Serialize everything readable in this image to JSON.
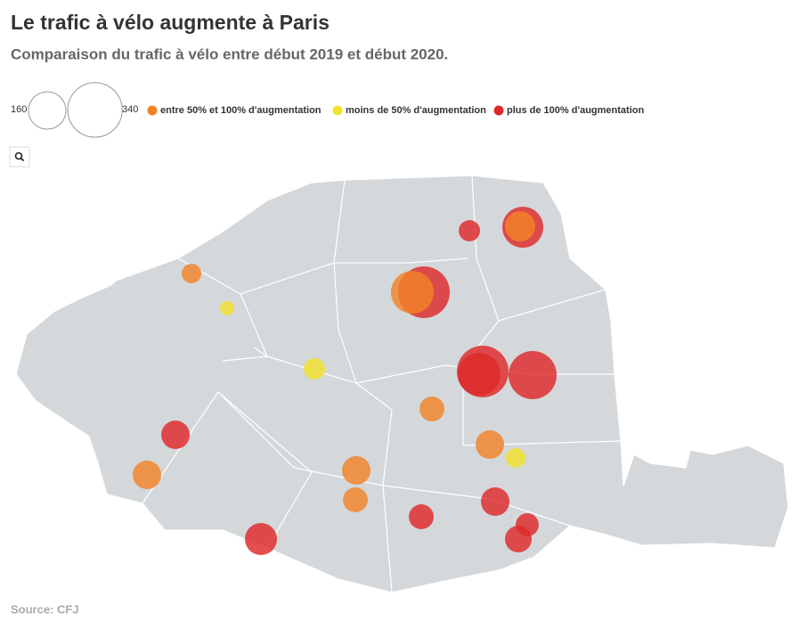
{
  "title": "Le trafic à vélo augmente à Paris",
  "subtitle": "Comparaison du trafic à vélo entre début 2019 et début 2020.",
  "size_legend": [
    160,
    340
  ],
  "categories": [
    {
      "label": "entre 50% et 100% d'augmentation",
      "color": "#f08228"
    },
    {
      "label": "moins de 50% d'augmentation",
      "color": "#f2e12a"
    },
    {
      "label": "plus de 100% d'augmentation",
      "color": "#de2a2a"
    }
  ],
  "points": [
    {
      "category": 2,
      "value": 52
    },
    {
      "category": 2,
      "value": 192
    },
    {
      "category": 0,
      "value": 105
    },
    {
      "category": 0,
      "value": 44
    },
    {
      "category": 1,
      "value": 23
    },
    {
      "category": 2,
      "value": 305
    },
    {
      "category": 0,
      "value": 209
    },
    {
      "category": 1,
      "value": 52
    },
    {
      "category": 2,
      "value": 305
    },
    {
      "category": 2,
      "value": 209
    },
    {
      "category": 2,
      "value": 265
    },
    {
      "category": 0,
      "value": 71
    },
    {
      "category": 2,
      "value": 93
    },
    {
      "category": 0,
      "value": 93
    },
    {
      "category": 1,
      "value": 44
    },
    {
      "category": 0,
      "value": 93
    },
    {
      "category": 0,
      "value": 93
    },
    {
      "category": 0,
      "value": 71
    },
    {
      "category": 2,
      "value": 93
    },
    {
      "category": 2,
      "value": 71
    },
    {
      "category": 2,
      "value": 61
    },
    {
      "category": 2,
      "value": 82
    },
    {
      "category": 2,
      "value": 118
    }
  ],
  "source": "Source: CFJ"
}
